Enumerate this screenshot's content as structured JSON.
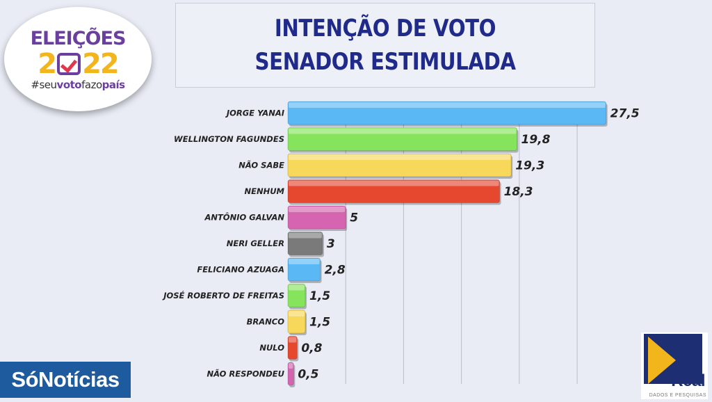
{
  "title": {
    "line1": "INTENÇÃO DE VOTO",
    "line2": "SENADOR ESTIMULADA"
  },
  "logo_eleicoes": {
    "top": "ELEIÇÕES",
    "year_left": "2",
    "year_right": "22",
    "tag_prefix": "#seu",
    "tag_bold1": "voto",
    "tag_mid": "fazo",
    "tag_bold2": "país"
  },
  "logo_sonoticias": "SóNotícias",
  "logo_real": {
    "name": "Real",
    "subtitle": "DADOS E PESQUISAS"
  },
  "chart_data": {
    "type": "bar",
    "orientation": "horizontal",
    "categories": [
      "JORGE YANAI",
      "WELLINGTON FAGUNDES",
      "NÃO SABE",
      "NENHUM",
      "ANTÔNIO GALVAN",
      "NERI GELLER",
      "FELICIANO AZUAGA",
      "JOSÉ ROBERTO DE FREITAS",
      "BRANCO",
      "NULO",
      "NÃO RESPONDEU"
    ],
    "values": [
      27.5,
      19.8,
      19.3,
      18.3,
      5,
      3,
      2.8,
      1.5,
      1.5,
      0.8,
      0.5
    ],
    "value_labels": [
      "27,5",
      "19,8",
      "19,3",
      "18,3",
      "5",
      "3",
      "2,8",
      "1,5",
      "1,5",
      "0,8",
      "0,5"
    ],
    "colors": [
      "#5ab8f5",
      "#86e45c",
      "#f8d85a",
      "#e5482e",
      "#d565b0",
      "#7a7a7a",
      "#5ab8f5",
      "#86e45c",
      "#f8d85a",
      "#e5482e",
      "#d565b0"
    ],
    "xlim": [
      0,
      28
    ],
    "grid": true,
    "legend": "none"
  }
}
